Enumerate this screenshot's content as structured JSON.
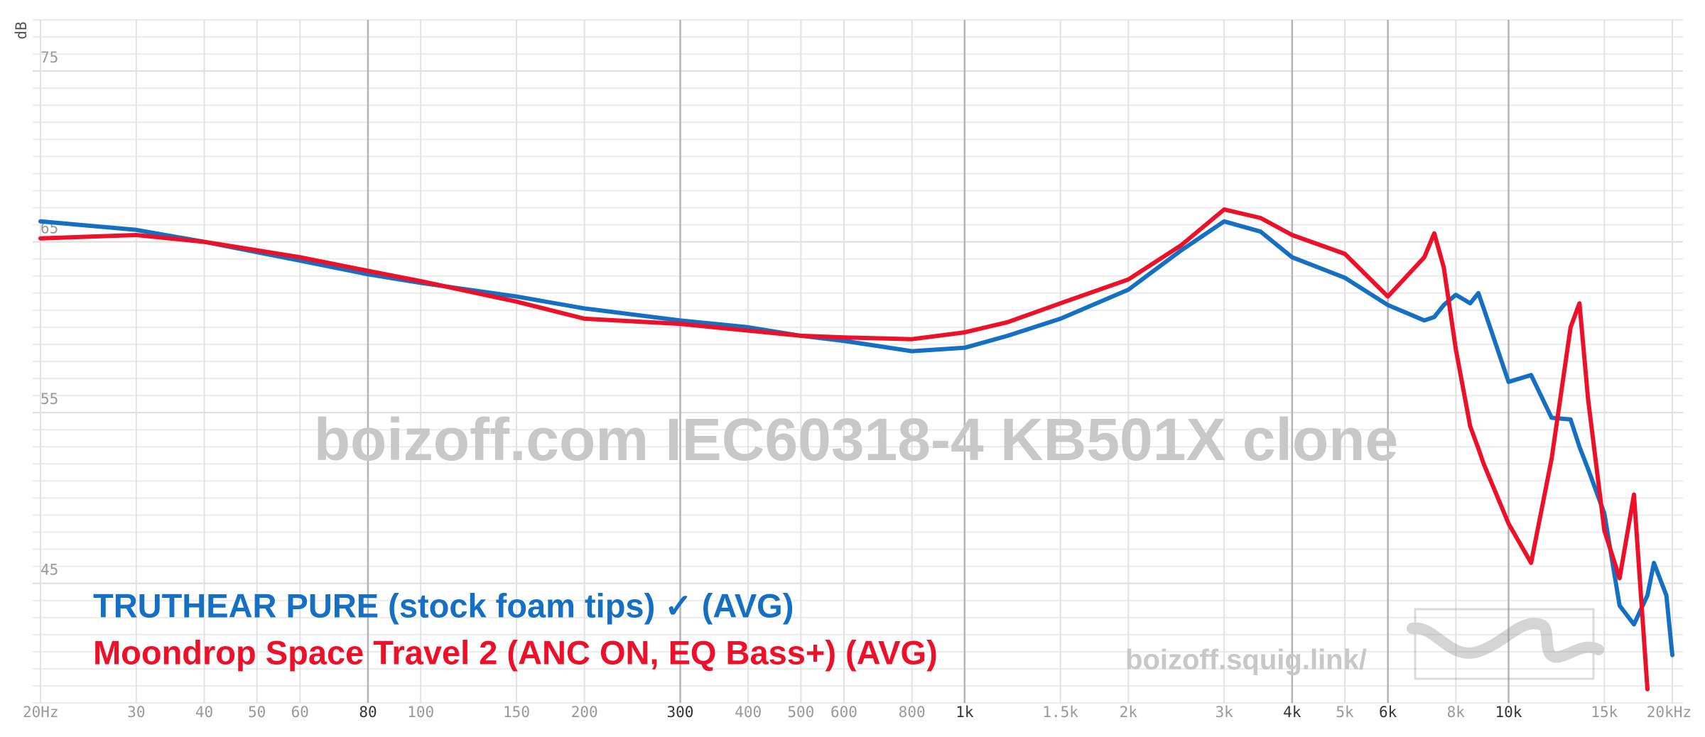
{
  "chart_data": {
    "type": "line",
    "y_label": "dB",
    "watermark": "boizoff.com IEC60318-4 KB501X clone",
    "site": "boizoff.squig.link/",
    "xscale": "log",
    "xlim": [
      20,
      20000
    ],
    "ylim": [
      38,
      78
    ],
    "xticks": [
      {
        "value": 20,
        "label": "20Hz"
      },
      30,
      40,
      50,
      60,
      80,
      100,
      150,
      200,
      300,
      400,
      500,
      600,
      800,
      {
        "value": 1000,
        "label": "1k"
      },
      {
        "value": 1500,
        "label": "1.5k"
      },
      {
        "value": 2000,
        "label": "2k"
      },
      {
        "value": 3000,
        "label": "3k"
      },
      {
        "value": 4000,
        "label": "4k"
      },
      {
        "value": 5000,
        "label": "5k"
      },
      {
        "value": 6000,
        "label": "6k"
      },
      {
        "value": 8000,
        "label": "8k"
      },
      {
        "value": 10000,
        "label": "10k"
      },
      {
        "value": 15000,
        "label": "15k"
      },
      {
        "value": 20000,
        "label": "20kHz"
      }
    ],
    "xticks_emphasized": [
      80,
      300,
      1000,
      4000,
      6000,
      10000
    ],
    "yticks": [
      45,
      55,
      65,
      75
    ],
    "y_minor_ticks": [
      38,
      39,
      40,
      41,
      42,
      43,
      44,
      46,
      47,
      48,
      49,
      50,
      51,
      52,
      53,
      54,
      56,
      57,
      58,
      59,
      60,
      61,
      62,
      63,
      64,
      66,
      67,
      68,
      69,
      70,
      71,
      72,
      73,
      74,
      76,
      77,
      78
    ],
    "grid": true,
    "x": [
      20,
      30,
      40,
      60,
      80,
      100,
      150,
      200,
      300,
      400,
      500,
      600,
      800,
      1000,
      1200,
      1500,
      2000,
      2500,
      3000,
      3500,
      4000,
      5000,
      6000,
      7000,
      7300,
      7600,
      8000,
      8500,
      8800,
      9000,
      10000,
      11000,
      12000,
      13000,
      13500,
      14000,
      15000,
      16000,
      17000,
      18000,
      18500,
      19500,
      20000
    ],
    "series": [
      {
        "name": "TRUTHEAR PURE (stock foam tips) ✓ (AVG)",
        "color": "#1570c4",
        "values": [
          66.2,
          65.7,
          65.0,
          63.9,
          63.1,
          62.6,
          61.8,
          61.1,
          60.4,
          60.0,
          59.5,
          59.2,
          58.6,
          58.8,
          59.5,
          60.5,
          62.2,
          64.5,
          66.2,
          65.6,
          64.1,
          62.9,
          61.3,
          60.4,
          60.6,
          61.3,
          61.9,
          61.4,
          62.0,
          61.1,
          56.8,
          57.2,
          54.7,
          54.6,
          53.0,
          51.7,
          49.1,
          43.7,
          42.6,
          44.3,
          46.2,
          44.3,
          40.8
        ]
      },
      {
        "name": "Moondrop Space Travel 2 (ANC ON, EQ Bass+) (AVG)",
        "color": "#ec1028",
        "values": [
          65.2,
          65.4,
          65.0,
          64.1,
          63.3,
          62.7,
          61.5,
          60.5,
          60.2,
          59.8,
          59.5,
          59.4,
          59.3,
          59.7,
          60.3,
          61.4,
          62.8,
          64.8,
          66.9,
          66.4,
          65.4,
          64.3,
          61.8,
          64.1,
          65.5,
          63.5,
          58.7,
          54.2,
          52.9,
          52.0,
          48.5,
          46.2,
          52.3,
          60.0,
          61.4,
          55.8,
          48.1,
          45.3,
          50.2,
          38.8,
          null,
          null,
          null
        ]
      }
    ]
  }
}
